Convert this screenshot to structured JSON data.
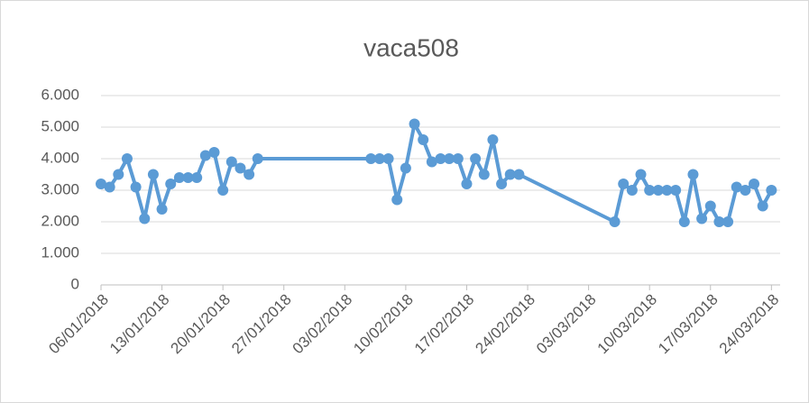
{
  "chart_data": {
    "type": "line",
    "title": "vaca508",
    "x": [
      "2018-01-06",
      "2018-01-07",
      "2018-01-08",
      "2018-01-09",
      "2018-01-10",
      "2018-01-11",
      "2018-01-12",
      "2018-01-13",
      "2018-01-14",
      "2018-01-15",
      "2018-01-16",
      "2018-01-17",
      "2018-01-18",
      "2018-01-19",
      "2018-01-20",
      "2018-01-21",
      "2018-01-22",
      "2018-01-23",
      "2018-01-24",
      "2018-02-06",
      "2018-02-07",
      "2018-02-08",
      "2018-02-09",
      "2018-02-10",
      "2018-02-11",
      "2018-02-12",
      "2018-02-13",
      "2018-02-14",
      "2018-02-15",
      "2018-02-16",
      "2018-02-17",
      "2018-02-18",
      "2018-02-19",
      "2018-02-20",
      "2018-02-21",
      "2018-02-22",
      "2018-02-23",
      "2018-03-06",
      "2018-03-07",
      "2018-03-08",
      "2018-03-09",
      "2018-03-10",
      "2018-03-11",
      "2018-03-12",
      "2018-03-13",
      "2018-03-14",
      "2018-03-15",
      "2018-03-16",
      "2018-03-17",
      "2018-03-18",
      "2018-03-19",
      "2018-03-20",
      "2018-03-21",
      "2018-03-22",
      "2018-03-23",
      "2018-03-24"
    ],
    "values": [
      3.2,
      3.1,
      3.5,
      4.0,
      3.1,
      2.1,
      3.5,
      2.4,
      3.2,
      3.4,
      3.4,
      3.4,
      4.1,
      4.2,
      3.0,
      3.9,
      3.7,
      3.5,
      4.0,
      4.0,
      4.0,
      4.0,
      2.7,
      3.7,
      5.1,
      4.6,
      3.9,
      4.0,
      4.0,
      4.0,
      3.2,
      4.0,
      3.5,
      4.6,
      3.2,
      3.5,
      3.5,
      2.0,
      3.2,
      3.0,
      3.5,
      3.0,
      3.0,
      3.0,
      3.0,
      2.0,
      3.5,
      2.1,
      2.5,
      2.0,
      2.0,
      3.1,
      3.0,
      3.2,
      2.5,
      3.0
    ],
    "color": "#5b9bd5",
    "xlim": [
      "2018-01-06",
      "2018-03-25"
    ],
    "xticks": [
      {
        "value": "2018-01-06",
        "label": "06/01/2018"
      },
      {
        "value": "2018-01-13",
        "label": "13/01/2018"
      },
      {
        "value": "2018-01-20",
        "label": "20/01/2018"
      },
      {
        "value": "2018-01-27",
        "label": "27/01/2018"
      },
      {
        "value": "2018-02-03",
        "label": "03/02/2018"
      },
      {
        "value": "2018-02-10",
        "label": "10/02/2018"
      },
      {
        "value": "2018-02-17",
        "label": "17/02/2018"
      },
      {
        "value": "2018-02-24",
        "label": "24/02/2018"
      },
      {
        "value": "2018-03-03",
        "label": "03/03/2018"
      },
      {
        "value": "2018-03-10",
        "label": "10/03/2018"
      },
      {
        "value": "2018-03-17",
        "label": "17/03/2018"
      },
      {
        "value": "2018-03-24",
        "label": "24/03/2018"
      }
    ],
    "ylim": [
      0,
      6
    ],
    "yticks": [
      0,
      {
        "value": 1,
        "label": "1.000"
      },
      {
        "value": 2,
        "label": "2.000"
      },
      {
        "value": 3,
        "label": "3.000"
      },
      {
        "value": 4,
        "label": "4.000"
      },
      {
        "value": 5,
        "label": "5.000"
      },
      {
        "value": 6,
        "label": "6.000"
      }
    ],
    "grid": true
  }
}
